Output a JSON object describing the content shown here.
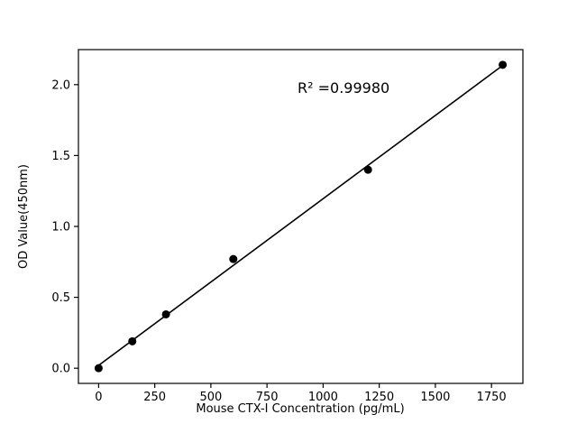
{
  "figure": {
    "background": "#ffffff"
  },
  "chart_data": {
    "type": "scatter",
    "x": [
      0,
      150,
      300,
      600,
      1200,
      1800
    ],
    "y": [
      0.0,
      0.19,
      0.38,
      0.77,
      1.4,
      2.14
    ],
    "fit_line": true,
    "annotation": "R² =0.99980",
    "title": "",
    "xlabel": "Mouse CTX-I Concentration (pg/mL)",
    "ylabel": "OD Value(450nm)",
    "xlim": [
      -90,
      1890
    ],
    "ylim": [
      -0.107,
      2.247
    ],
    "xticks": [
      "0",
      "250",
      "500",
      "750",
      "1000",
      "1250",
      "1500",
      "1750"
    ],
    "yticks": [
      "0.0",
      "0.5",
      "1.0",
      "1.5",
      "2.0"
    ],
    "grid": false,
    "legend": false,
    "marker_color": "#000000",
    "line_color": "#000000",
    "frame_color": "#000000"
  }
}
